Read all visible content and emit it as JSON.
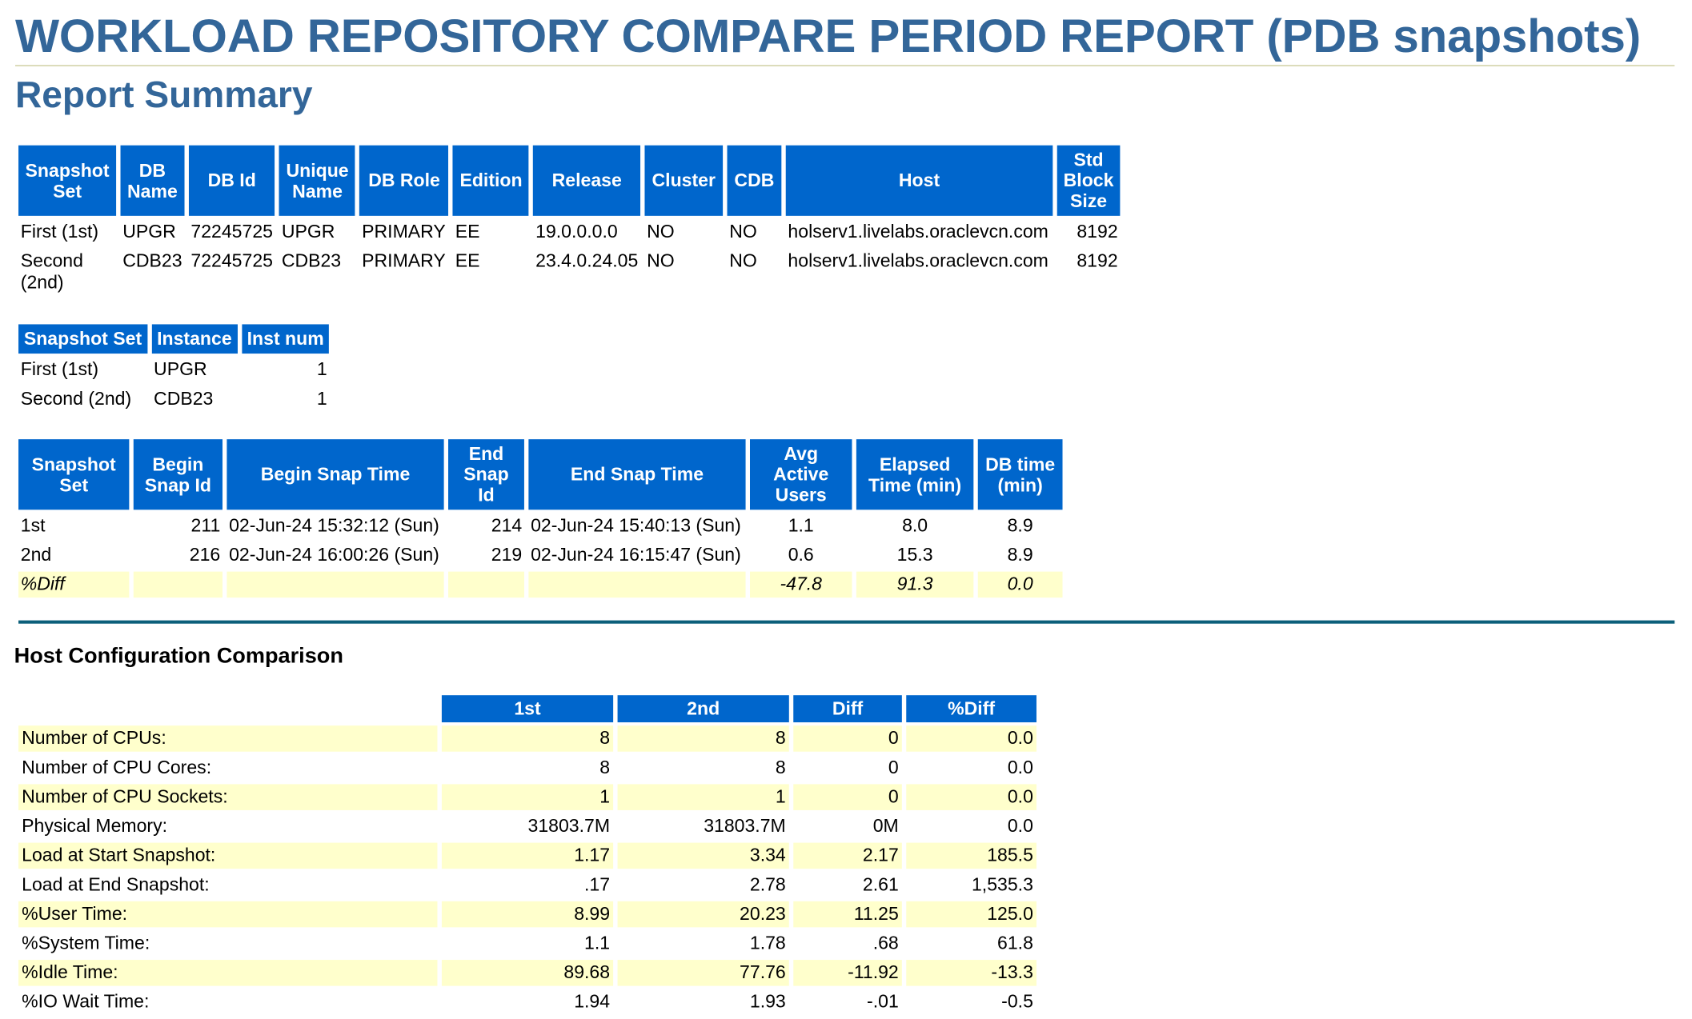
{
  "title": "WORKLOAD REPOSITORY COMPARE PERIOD REPORT (PDB snapshots)",
  "subtitle": "Report Summary",
  "db_table": {
    "headers": [
      "Snapshot Set",
      "DB Name",
      "DB Id",
      "Unique Name",
      "DB Role",
      "Edition",
      "Release",
      "Cluster",
      "CDB",
      "Host",
      "Std Block Size"
    ],
    "rows": [
      [
        "First (1st)",
        "UPGR",
        "72245725",
        "UPGR",
        "PRIMARY",
        "EE",
        "19.0.0.0.0",
        "NO",
        "NO",
        "holserv1.livelabs.oraclevcn.com",
        "8192"
      ],
      [
        "Second (2nd)",
        "CDB23",
        "72245725",
        "CDB23",
        "PRIMARY",
        "EE",
        "23.4.0.24.05",
        "NO",
        "NO",
        "holserv1.livelabs.oraclevcn.com",
        "8192"
      ]
    ]
  },
  "inst_table": {
    "headers": [
      "Snapshot Set",
      "Instance",
      "Inst num"
    ],
    "rows": [
      [
        "First (1st)",
        "UPGR",
        "1"
      ],
      [
        "Second (2nd)",
        "CDB23",
        "1"
      ]
    ]
  },
  "snap_table": {
    "headers": [
      "Snapshot Set",
      "Begin Snap Id",
      "Begin Snap Time",
      "End Snap Id",
      "End Snap Time",
      "Avg Active Users",
      "Elapsed Time (min)",
      "DB time (min)"
    ],
    "rows": [
      [
        "1st",
        "211",
        "02-Jun-24 15:32:12 (Sun)",
        "214",
        "02-Jun-24 15:40:13 (Sun)",
        "1.1",
        "8.0",
        "8.9"
      ],
      [
        "2nd",
        "216",
        "02-Jun-24 16:00:26 (Sun)",
        "219",
        "02-Jun-24 16:15:47 (Sun)",
        "0.6",
        "15.3",
        "8.9"
      ]
    ],
    "diff_row": [
      "%Diff",
      "",
      "",
      "",
      "",
      "-47.8",
      "91.3",
      "0.0"
    ]
  },
  "host_section_title": "Host Configuration Comparison",
  "host_table": {
    "headers": [
      "",
      "1st",
      "2nd",
      "Diff",
      "%Diff"
    ],
    "rows": [
      [
        "Number of CPUs:",
        "8",
        "8",
        "0",
        "0.0"
      ],
      [
        "Number of CPU Cores:",
        "8",
        "8",
        "0",
        "0.0"
      ],
      [
        "Number of CPU Sockets:",
        "1",
        "1",
        "0",
        "0.0"
      ],
      [
        "Physical Memory:",
        "31803.7M",
        "31803.7M",
        "0M",
        "0.0"
      ],
      [
        "Load at Start Snapshot:",
        "1.17",
        "3.34",
        "2.17",
        "185.5"
      ],
      [
        "Load at End Snapshot:",
        ".17",
        "2.78",
        "2.61",
        "1,535.3"
      ],
      [
        "%User Time:",
        "8.99",
        "20.23",
        "11.25",
        "125.0"
      ],
      [
        "%System Time:",
        "1.1",
        "1.78",
        ".68",
        "61.8"
      ],
      [
        "%Idle Time:",
        "89.68",
        "77.76",
        "-11.92",
        "-13.3"
      ],
      [
        "%IO Wait Time:",
        "1.94",
        "1.93",
        "-.01",
        "-0.5"
      ]
    ]
  },
  "colors": {
    "heading_blue": "#336699",
    "header_bg": "#0066cc",
    "highlight_row": "#ffffcc",
    "section_rule": "#0b5f7a"
  }
}
